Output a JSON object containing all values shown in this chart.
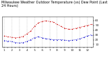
{
  "title": "Milwaukee Weather Outdoor Temperature (vs) Dew Point (Last 24 Hours)",
  "temp_values": [
    28,
    26,
    25,
    24,
    25,
    27,
    32,
    38,
    48,
    55,
    58,
    60,
    58,
    57,
    52,
    48,
    44,
    42,
    42,
    44,
    46,
    48,
    50,
    52
  ],
  "dew_values": [
    18,
    17,
    16,
    14,
    13,
    14,
    16,
    20,
    24,
    26,
    24,
    22,
    21,
    20,
    20,
    20,
    19,
    18,
    19,
    20,
    22,
    25,
    28,
    30
  ],
  "x_labels": [
    "1",
    "",
    "2",
    "",
    "3",
    "",
    "4",
    "",
    "5",
    "",
    "6",
    "",
    "7",
    "",
    "8",
    "",
    "9",
    "",
    "10",
    "",
    "11",
    "",
    "12",
    ""
  ],
  "temp_color": "#cc0000",
  "dew_color": "#0000cc",
  "grid_color": "#888888",
  "bg_color": "#ffffff",
  "ylim": [
    5,
    68
  ],
  "ytick_vals": [
    10,
    20,
    30,
    40,
    50,
    60
  ],
  "ytick_labels": [
    "10",
    "20",
    "30",
    "40",
    "50",
    "60"
  ],
  "title_fontsize": 3.5,
  "tick_fontsize": 3.0,
  "legend_red_label": "",
  "legend_blue_label": ""
}
